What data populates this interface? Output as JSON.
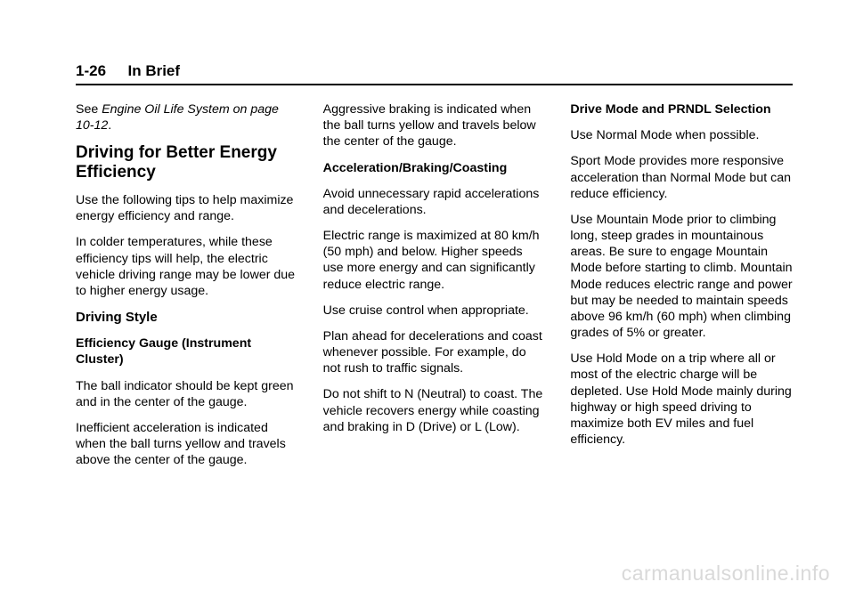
{
  "header": {
    "page_num": "1-26",
    "section": "In Brief"
  },
  "col1": {
    "see_line1": "See ",
    "see_italic": "Engine Oil Life System on page 10-12",
    "see_end": ".",
    "h2": "Driving for Better Energy Efficiency",
    "p1": "Use the following tips to help maximize energy efficiency and range.",
    "p2": "In colder temperatures, while these efficiency tips will help, the electric vehicle driving range may be lower due to higher energy usage.",
    "sub1": "Driving Style",
    "sub2": "Efficiency Gauge (Instrument Cluster)",
    "p3": "The ball indicator should be kept green and in the center of the gauge.",
    "p4": "Inefficient acceleration is indicated when the ball turns yellow and travels above the center of the gauge."
  },
  "col2": {
    "p1": "Aggressive braking is indicated when the ball turns yellow and travels below the center of the gauge.",
    "sub1": "Acceleration/Braking/Coasting",
    "p2": "Avoid unnecessary rapid accelerations and decelerations.",
    "p3": "Electric range is maximized at 80 km/h (50 mph) and below. Higher speeds use more energy and can significantly reduce electric range.",
    "p4": "Use cruise control when appropriate.",
    "p5": "Plan ahead for decelerations and coast whenever possible. For example, do not rush to traffic signals.",
    "p6": "Do not shift to N (Neutral) to coast. The vehicle recovers energy while coasting and braking in D (Drive) or L (Low)."
  },
  "col3": {
    "sub1": "Drive Mode and PRNDL Selection",
    "p1": "Use Normal Mode when possible.",
    "p2": "Sport Mode provides more responsive acceleration than Normal Mode but can reduce efficiency.",
    "p3": "Use Mountain Mode prior to climbing long, steep grades in mountainous areas. Be sure to engage Mountain Mode before starting to climb. Mountain Mode reduces electric range and power but may be needed to maintain speeds above 96 km/h (60 mph) when climbing grades of 5% or greater.",
    "p4": "Use Hold Mode on a trip where all or most of the electric charge will be depleted. Use Hold Mode mainly during highway or high speed driving to maximize both EV miles and fuel efficiency."
  },
  "watermark": "carmanualsonline.info"
}
